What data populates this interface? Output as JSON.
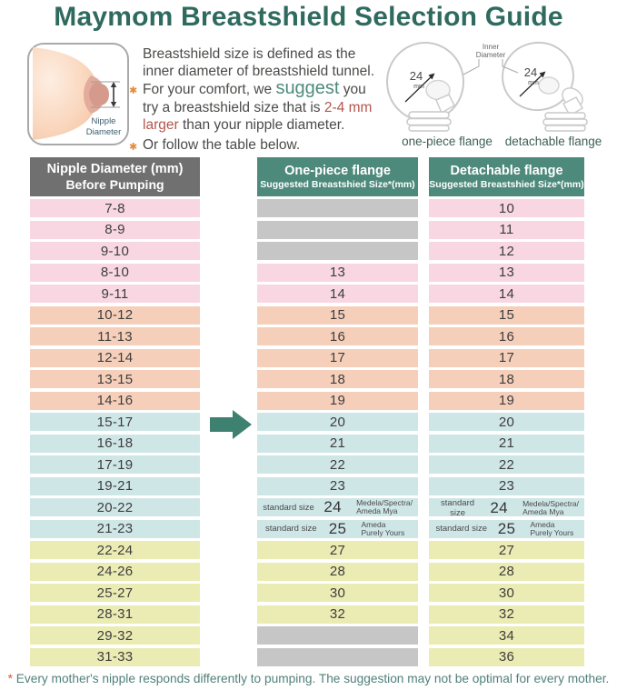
{
  "title": "Maymom Breastshield Selection Guide",
  "intro": {
    "diagram_label_line1": "Nipple",
    "diagram_label_line2": "Diameter",
    "p1_line1": "Breastshield size is defined as the",
    "p1_line2": "inner diameter of breastshield tunnel.",
    "b1_pre": "For your comfort, we ",
    "b1_suggest": "suggest",
    "b1_post": " you",
    "b1_line2_pre": "try a breastshield size that is ",
    "b1_line2_em": "2-4 mm",
    "b1_line3_em": "larger",
    "b1_line3_post": " than your nipple diameter.",
    "b2": "Or follow the table below.",
    "flange_inner_label_line1": "Inner",
    "flange_inner_label_line2": "Diameter",
    "flange_size": "24",
    "flange_unit": "mm",
    "onepiece_caption": "one-piece flange",
    "detachable_caption": "detachable flange"
  },
  "table": {
    "headers": [
      {
        "title": "Nipple Diameter (mm)",
        "subtitle": "Before Pumping"
      },
      {
        "title": "One-piece flange",
        "subtitle": "Suggested Breastshied Size*(mm)"
      },
      {
        "title": "Detachable flange",
        "subtitle": "Suggested Breastshied Size*(mm)"
      }
    ],
    "rows": [
      {
        "range": "7-8",
        "tone": "pink",
        "one": null,
        "det": "10"
      },
      {
        "range": "8-9",
        "tone": "pink",
        "one": null,
        "det": "11"
      },
      {
        "range": "9-10",
        "tone": "pink",
        "one": null,
        "det": "12"
      },
      {
        "range": "8-10",
        "tone": "pink",
        "one": "13",
        "det": "13"
      },
      {
        "range": "9-11",
        "tone": "pink",
        "one": "14",
        "det": "14"
      },
      {
        "range": "10-12",
        "tone": "peach",
        "one": "15",
        "det": "15"
      },
      {
        "range": "11-13",
        "tone": "peach",
        "one": "16",
        "det": "16"
      },
      {
        "range": "12-14",
        "tone": "peach",
        "one": "17",
        "det": "17"
      },
      {
        "range": "13-15",
        "tone": "peach",
        "one": "18",
        "det": "18"
      },
      {
        "range": "14-16",
        "tone": "peach",
        "one": "19",
        "det": "19"
      },
      {
        "range": "15-17",
        "tone": "blue",
        "one": "20",
        "det": "20"
      },
      {
        "range": "16-18",
        "tone": "blue",
        "one": "21",
        "det": "21"
      },
      {
        "range": "17-19",
        "tone": "blue",
        "one": "22",
        "det": "22"
      },
      {
        "range": "19-21",
        "tone": "blue",
        "one": "23",
        "det": "23"
      },
      {
        "range": "20-22",
        "tone": "blue",
        "one": {
          "label": "standard size",
          "value": "24",
          "note": [
            "Medela/Spectra/",
            "Ameda Mya"
          ]
        },
        "det": {
          "label": "standard size",
          "value": "24",
          "note": [
            "Medela/Spectra/",
            "Ameda Mya"
          ]
        }
      },
      {
        "range": "21-23",
        "tone": "blue",
        "one": {
          "label": "standard size",
          "value": "25",
          "note": [
            "Ameda",
            "Purely Yours"
          ]
        },
        "det": {
          "label": "standard size",
          "value": "25",
          "note": [
            "Ameda",
            "Purely Yours"
          ]
        }
      },
      {
        "range": "22-24",
        "tone": "yellow",
        "one": "27",
        "det": "27"
      },
      {
        "range": "24-26",
        "tone": "yellow",
        "one": "28",
        "det": "28"
      },
      {
        "range": "25-27",
        "tone": "yellow",
        "one": "30",
        "det": "30"
      },
      {
        "range": "28-31",
        "tone": "yellow",
        "one": "32",
        "det": "32"
      },
      {
        "range": "29-32",
        "tone": "yellow",
        "one": null,
        "det": "34"
      },
      {
        "range": "31-33",
        "tone": "yellow",
        "one": null,
        "det": "36"
      }
    ]
  },
  "footnote_star": "*",
  "footnote_text": " Every mother's nipple responds differently to pumping. The suggestion may not be optimal for every mother.",
  "colors": {
    "title_teal": "#2f6a5f",
    "header_teal": "#4d8a7b",
    "header_gray": "#707070",
    "row_pink": "#f8d7e3",
    "row_peach": "#f6cfba",
    "row_blue": "#cfe6e7",
    "row_yellow": "#ebecb3",
    "row_gray": "#c6c6c6",
    "arrow_teal": "#3e8170",
    "accent_orange": "#e58a3a",
    "accent_red": "#b5544b",
    "accent_red_star": "#d94f3d",
    "footer_text": "#508079"
  },
  "chart_data": {
    "type": "table",
    "title": "Maymom Breastshield Selection Guide",
    "columns": [
      "Nipple Diameter (mm) Before Pumping",
      "One-piece flange Suggested Breastshied Size*(mm)",
      "Detachable flange Suggested Breastshied Size*(mm)"
    ],
    "rows": [
      [
        "7-8",
        null,
        10
      ],
      [
        "8-9",
        null,
        11
      ],
      [
        "9-10",
        null,
        12
      ],
      [
        "8-10",
        13,
        13
      ],
      [
        "9-11",
        14,
        14
      ],
      [
        "10-12",
        15,
        15
      ],
      [
        "11-13",
        16,
        16
      ],
      [
        "12-14",
        17,
        17
      ],
      [
        "13-15",
        18,
        18
      ],
      [
        "14-16",
        19,
        19
      ],
      [
        "15-17",
        20,
        20
      ],
      [
        "16-18",
        21,
        21
      ],
      [
        "17-19",
        22,
        22
      ],
      [
        "19-21",
        23,
        23
      ],
      [
        "20-22",
        "24 standard size (Medela/Spectra/Ameda Mya)",
        "24 standard size (Medela/Spectra/Ameda Mya)"
      ],
      [
        "21-23",
        "25 standard size (Ameda Purely Yours)",
        "25 standard size (Ameda Purely Yours)"
      ],
      [
        "22-24",
        27,
        27
      ],
      [
        "24-26",
        28,
        28
      ],
      [
        "25-27",
        30,
        30
      ],
      [
        "28-31",
        32,
        32
      ],
      [
        "29-32",
        null,
        34
      ],
      [
        "31-33",
        null,
        36
      ]
    ],
    "notes": "null = gray/empty cell (size not offered); row band colors group nipple-size ranges: pink, peach, blue, yellow"
  }
}
